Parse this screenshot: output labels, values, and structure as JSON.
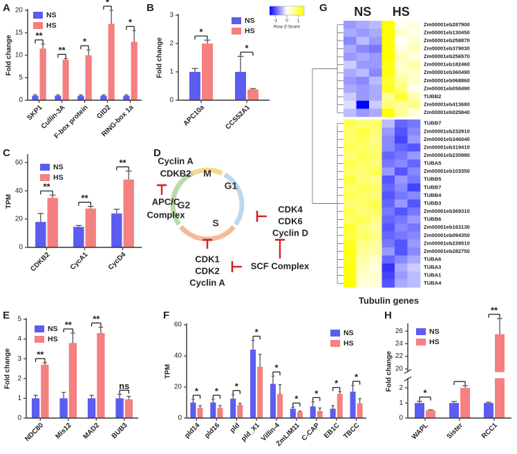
{
  "chart_data": [
    {
      "type": "bar",
      "panel": "A",
      "ylabel": "Fold change",
      "categories": [
        "SKP1",
        "Cullin-3A",
        "F-box protein",
        "GID2",
        "RING-box 1a"
      ],
      "series": [
        {
          "name": "NS",
          "color": "#5c5cf0",
          "values": [
            1,
            1,
            1,
            1,
            1
          ],
          "errors": [
            0.2,
            0.2,
            0.2,
            0.2,
            0.2
          ]
        },
        {
          "name": "HS",
          "color": "#f4807f",
          "values": [
            11.5,
            9,
            10,
            17,
            13
          ],
          "errors": [
            1,
            0.3,
            1.2,
            3,
            2.5
          ]
        }
      ],
      "significance": [
        "**",
        "**",
        "*",
        "*",
        "*"
      ],
      "ylim": [
        0,
        20
      ],
      "yticks": [
        0,
        5,
        10,
        15,
        20
      ]
    },
    {
      "type": "bar",
      "panel": "B",
      "ylabel": "Fold change",
      "categories": [
        "APC10a",
        "CCS52A1"
      ],
      "series": [
        {
          "name": "NS",
          "color": "#5c5cf0",
          "values": [
            1,
            1
          ],
          "errors": [
            0.12,
            0.55
          ]
        },
        {
          "name": "HS",
          "color": "#f4807f",
          "values": [
            2,
            0.38
          ],
          "errors": [
            0.12,
            0.03
          ]
        }
      ],
      "significance": [
        "*",
        "*"
      ],
      "ylim": [
        0,
        3
      ],
      "yticks": [
        0,
        1,
        2,
        3
      ]
    },
    {
      "type": "bar",
      "panel": "C",
      "ylabel": "TPM",
      "categories": [
        "CDKB2",
        "CycA1",
        "CycD4"
      ],
      "series": [
        {
          "name": "NS",
          "color": "#5c5cf0",
          "values": [
            18,
            14.5,
            24
          ],
          "errors": [
            6,
            1,
            3
          ]
        },
        {
          "name": "HS",
          "color": "#f4807f",
          "values": [
            35,
            27.5,
            48
          ],
          "errors": [
            2,
            1.5,
            6
          ]
        }
      ],
      "significance": [
        "**",
        "**",
        "**"
      ],
      "ylim": [
        0,
        65
      ],
      "yticks": [
        0,
        20,
        40,
        60
      ]
    },
    {
      "type": "diagram",
      "panel": "D",
      "phases": [
        "M",
        "G1",
        "S",
        "G2"
      ],
      "phase_colors": [
        "#f6d98c",
        "#bdd8ee",
        "#f5b99b",
        "#badbaa"
      ],
      "regulators": [
        {
          "lines": [
            "Cyclin A",
            "CDKB2"
          ]
        },
        {
          "lines": [
            "APC/C",
            "Complex"
          ]
        },
        {
          "lines": [
            "CDK4",
            "CDK6",
            "Cyclin D"
          ]
        },
        {
          "lines": [
            "CDK1",
            "CDK2",
            "Cyclin A"
          ]
        },
        {
          "lines": [
            "SCF Complex"
          ]
        }
      ]
    },
    {
      "type": "heatmap",
      "panel": "G",
      "column_groups": [
        {
          "name": "NS",
          "color": "#1f3bd0"
        },
        {
          "name": "HS",
          "color": "#e02424"
        }
      ],
      "xlabel": "Tubulin genes",
      "legend_title": "Row Z-Score",
      "colormap": [
        "#0000ff",
        "#ffffff",
        "#ffff00"
      ],
      "zlim": [
        -1.5,
        1.5
      ],
      "legend_ticks": [
        -1,
        0,
        1
      ],
      "rows": [
        "Zm00001eb287900",
        "Zm00001eb130450",
        "Zm00001eb258870",
        "Zm00001eb379030",
        "Zm00001eb256570",
        "Zm00001eb182460",
        "Zm00001eb360490",
        "Zm00001eb068860",
        "Zm00001eb058490",
        "TUBB2",
        "Zm00001eb413680",
        "Zm00001eb025840",
        "TUBB7",
        "Zm00001eb232910",
        "Zm00001eb346040",
        "Zm00001eb319410",
        "Zm00001eb230880",
        "TUBA5",
        "Zm00001eb103350",
        "TUBB5",
        "TUBB7",
        "TUBB4",
        "TUBB3",
        "Zm00001eb369310",
        "TUBB6",
        "Zm00001eb163130",
        "Zm00001eb094350",
        "Zm00001eb239510",
        "Zm00001eb282750",
        "TUBA6",
        "TUBA3",
        "TUBA1",
        "TUBA4"
      ],
      "values": [
        [
          -0.6,
          -0.5,
          -0.4,
          1.6,
          0.1,
          0.2
        ],
        [
          -0.5,
          -0.6,
          -0.5,
          1.5,
          0.3,
          0.1
        ],
        [
          -0.7,
          -0.4,
          -0.6,
          1.6,
          0.0,
          0.3
        ],
        [
          -0.5,
          -0.7,
          -0.8,
          1.5,
          0.2,
          0.4
        ],
        [
          -0.6,
          -0.5,
          -0.6,
          1.5,
          0.4,
          0.2
        ],
        [
          -0.3,
          -0.6,
          -0.6,
          1.4,
          0.3,
          0.5
        ],
        [
          -0.5,
          -0.4,
          -0.7,
          1.4,
          0.4,
          0.3
        ],
        [
          -0.6,
          -0.7,
          -0.4,
          1.2,
          0.6,
          0.3
        ],
        [
          -0.5,
          -0.6,
          -0.5,
          1.3,
          0.8,
          0.1
        ],
        [
          -0.3,
          -0.6,
          -0.5,
          0.6,
          1.2,
          0.5
        ],
        [
          -0.2,
          -1.5,
          -0.3,
          0.8,
          0.6,
          0.7
        ],
        [
          -0.4,
          -0.6,
          -0.5,
          1.5,
          0.6,
          0.2
        ],
        [
          1.0,
          0.8,
          0.9,
          -0.4,
          -0.9,
          -0.8
        ],
        [
          0.9,
          1.1,
          0.8,
          -0.6,
          -1.0,
          -0.7
        ],
        [
          0.9,
          1.0,
          0.7,
          -0.7,
          -1.1,
          -0.6
        ],
        [
          1.0,
          0.9,
          0.8,
          -0.7,
          -0.9,
          -1.0
        ],
        [
          0.8,
          1.0,
          0.9,
          -0.9,
          -0.8,
          -0.6
        ],
        [
          1.0,
          0.9,
          0.8,
          -0.8,
          -0.7,
          -0.9
        ],
        [
          0.9,
          0.8,
          1.0,
          -0.6,
          -1.0,
          -0.7
        ],
        [
          1.1,
          0.8,
          0.7,
          -1.0,
          -0.6,
          -0.8
        ],
        [
          0.9,
          1.0,
          0.9,
          -0.9,
          -0.7,
          -1.1
        ],
        [
          1.0,
          0.9,
          0.8,
          -1.0,
          -0.8,
          -0.7
        ],
        [
          0.8,
          0.9,
          1.0,
          -0.9,
          -0.6,
          -1.0
        ],
        [
          1.0,
          0.8,
          0.9,
          -0.8,
          -1.0,
          -0.8
        ],
        [
          0.9,
          1.0,
          0.7,
          -0.9,
          -0.8,
          -0.6
        ],
        [
          1.2,
          0.8,
          0.6,
          -1.0,
          -0.7,
          -0.8
        ],
        [
          1.1,
          0.9,
          0.7,
          -0.9,
          -0.8,
          -0.7
        ],
        [
          1.3,
          0.7,
          0.6,
          -0.8,
          -1.0,
          -0.6
        ],
        [
          1.4,
          0.6,
          0.5,
          -0.6,
          -1.0,
          -0.7
        ],
        [
          1.3,
          0.5,
          0.3,
          -0.9,
          -0.7,
          -0.5
        ],
        [
          1.4,
          0.4,
          0.2,
          -1.2,
          -0.5,
          -0.3
        ],
        [
          1.4,
          0.3,
          0.3,
          -1.1,
          -0.6,
          -0.4
        ],
        [
          1.5,
          0.2,
          0.2,
          -1.0,
          -0.5,
          -0.4
        ]
      ]
    },
    {
      "type": "bar",
      "panel": "E",
      "ylabel": "Fold change",
      "categories": [
        "NDC80",
        "Mis12",
        "MAD2",
        "BUB3"
      ],
      "series": [
        {
          "name": "NS",
          "color": "#5c5cf0",
          "values": [
            1,
            1,
            1,
            1
          ],
          "errors": [
            0.15,
            0.3,
            0.15,
            0.2
          ]
        },
        {
          "name": "HS",
          "color": "#f4807f",
          "values": [
            2.7,
            3.8,
            4.3,
            0.95
          ],
          "errors": [
            0.1,
            0.5,
            0.3,
            0.15
          ]
        }
      ],
      "significance": [
        "**",
        "**",
        "**",
        "ns"
      ],
      "ylim": [
        0,
        5
      ],
      "yticks": [
        0,
        1,
        2,
        3,
        4,
        5
      ]
    },
    {
      "type": "bar",
      "panel": "F",
      "ylabel": "TPM",
      "categories": [
        "pld14",
        "pld16",
        "pld",
        "pld_X1",
        "Villin-4",
        "ZmLIM11",
        "C-CAP",
        "EB1C",
        "TBCC"
      ],
      "series": [
        {
          "name": "NS",
          "color": "#5c5cf0",
          "values": [
            10,
            10,
            12.5,
            44,
            22,
            6,
            7.5,
            6,
            17
          ],
          "errors": [
            2,
            2,
            2.5,
            6,
            5,
            1,
            3,
            2,
            4
          ]
        },
        {
          "name": "HS",
          "color": "#f4807f",
          "values": [
            6.5,
            6.5,
            8.5,
            33,
            15.5,
            4,
            4.5,
            15.5,
            9.5
          ],
          "errors": [
            1.5,
            1.5,
            1,
            8,
            6,
            0.5,
            2,
            1.5,
            3
          ]
        }
      ],
      "significance": [
        "*",
        "*",
        "*",
        "*",
        "*",
        "*",
        "*",
        "*",
        "*"
      ],
      "ylim": [
        0,
        60
      ],
      "yticks": [
        0,
        20,
        40,
        60
      ]
    },
    {
      "type": "bar",
      "panel": "H",
      "ylabel": "Fold change",
      "categories": [
        "WAPL",
        "Sister",
        "RCC1"
      ],
      "series": [
        {
          "name": "NS",
          "color": "#5c5cf0",
          "values": [
            1,
            1,
            1
          ],
          "errors": [
            0.12,
            0.1,
            0.05
          ]
        },
        {
          "name": "HS",
          "color": "#f4807f",
          "values": [
            0.5,
            2,
            25.5
          ],
          "errors": [
            0.05,
            0.15,
            2.5
          ]
        }
      ],
      "significance": [
        "*",
        "*",
        "**"
      ],
      "ylim": [
        0,
        27
      ],
      "axis_break": [
        2.6,
        19.6
      ],
      "yticks": [
        0,
        1,
        2,
        20,
        22,
        24,
        26
      ]
    }
  ]
}
